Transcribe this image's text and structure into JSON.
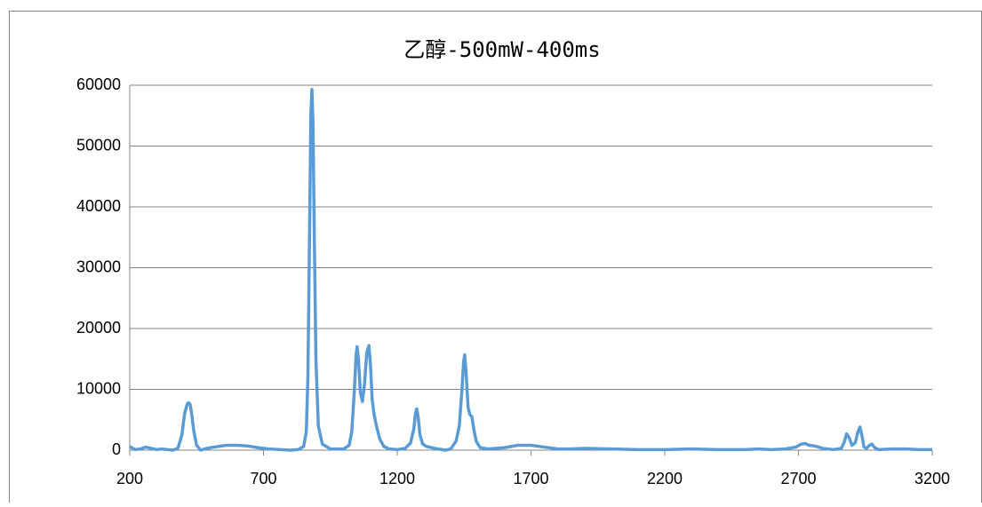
{
  "chart_data": {
    "type": "line",
    "title": "乙醇-500mW-400ms",
    "x": [
      200,
      220,
      240,
      260,
      280,
      300,
      320,
      340,
      360,
      380,
      395,
      405,
      415,
      420,
      426,
      432,
      440,
      450,
      465,
      480,
      500,
      530,
      560,
      600,
      640,
      680,
      720,
      760,
      800,
      830,
      850,
      860,
      866,
      872,
      877,
      881,
      885,
      890,
      896,
      905,
      920,
      950,
      1000,
      1020,
      1030,
      1040,
      1046,
      1050,
      1055,
      1062,
      1070,
      1078,
      1086,
      1094,
      1100,
      1106,
      1113,
      1122,
      1135,
      1150,
      1170,
      1200,
      1230,
      1250,
      1262,
      1268,
      1273,
      1278,
      1285,
      1295,
      1310,
      1340,
      1380,
      1400,
      1420,
      1432,
      1442,
      1448,
      1452,
      1457,
      1465,
      1472,
      1479,
      1486,
      1495,
      1510,
      1540,
      1600,
      1650,
      1700,
      1750,
      1800,
      1850,
      1900,
      2000,
      2100,
      2200,
      2300,
      2400,
      2500,
      2550,
      2600,
      2650,
      2690,
      2710,
      2725,
      2740,
      2760,
      2790,
      2830,
      2860,
      2870,
      2880,
      2890,
      2900,
      2912,
      2922,
      2930,
      2938,
      2945,
      2955,
      2965,
      2975,
      2985,
      3000,
      3050,
      3100,
      3150,
      3200
    ],
    "series": [
      {
        "name": "乙醇",
        "color": "#5b9bd5",
        "values": [
          600,
          100,
          200,
          500,
          300,
          100,
          200,
          100,
          0,
          300,
          2500,
          6000,
          7600,
          7800,
          7500,
          5800,
          3000,
          800,
          0,
          200,
          400,
          600,
          800,
          800,
          700,
          400,
          200,
          100,
          0,
          100,
          600,
          3000,
          12000,
          35000,
          55000,
          59300,
          54000,
          35000,
          15000,
          4000,
          1000,
          200,
          200,
          800,
          3000,
          10000,
          15500,
          17000,
          15000,
          9500,
          8000,
          11000,
          16000,
          17200,
          14000,
          8500,
          6000,
          4000,
          1800,
          600,
          200,
          100,
          300,
          1200,
          3500,
          6000,
          6800,
          5500,
          2500,
          1000,
          600,
          300,
          0,
          200,
          1500,
          4000,
          10000,
          14500,
          15700,
          13000,
          7000,
          5800,
          5500,
          3500,
          1500,
          400,
          200,
          400,
          800,
          800,
          500,
          200,
          200,
          300,
          200,
          100,
          100,
          200,
          100,
          100,
          200,
          100,
          200,
          500,
          1000,
          1100,
          800,
          700,
          300,
          100,
          300,
          1200,
          2700,
          2000,
          800,
          1200,
          3000,
          3800,
          2200,
          500,
          300,
          800,
          1000,
          400,
          100,
          200,
          200,
          100,
          100
        ]
      }
    ],
    "xlim": [
      200,
      3200
    ],
    "xticks": [
      200,
      700,
      1200,
      1700,
      2200,
      2700,
      3200
    ],
    "ylim": [
      0,
      60000
    ],
    "yticks": [
      0,
      10000,
      20000,
      30000,
      40000,
      50000,
      60000
    ],
    "grid": true
  }
}
